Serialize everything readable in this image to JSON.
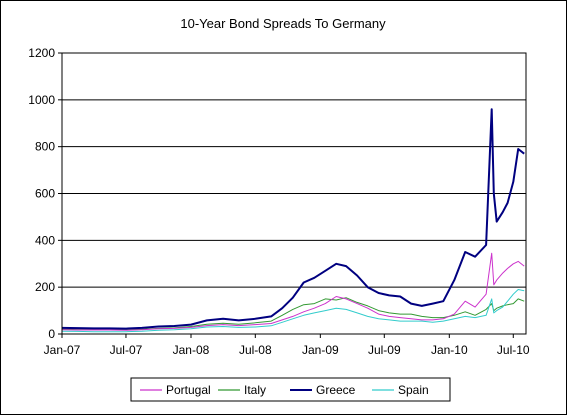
{
  "chart_data": {
    "type": "line",
    "title": "10-Year Bond Spreads To Germany",
    "xlabel": "",
    "ylabel": "",
    "ylim": [
      0,
      1200
    ],
    "y_ticks": [
      "0",
      "200",
      "400",
      "600",
      "800",
      "1000",
      "1200"
    ],
    "x_ticks": [
      "Jan-07",
      "Jul-07",
      "Jan-08",
      "Jul-08",
      "Jan-09",
      "Jul-09",
      "Jan-10",
      "Jul-10"
    ],
    "xlim": [
      "2007-01-01",
      "2010-08-06"
    ],
    "grid": "horizontal",
    "legend_position": "bottom",
    "x": [
      "2007-01-01",
      "2007-02-15",
      "2007-04-01",
      "2007-05-15",
      "2007-07-01",
      "2007-08-15",
      "2007-10-01",
      "2007-11-15",
      "2008-01-01",
      "2008-02-15",
      "2008-04-01",
      "2008-05-15",
      "2008-07-01",
      "2008-08-15",
      "2008-09-15",
      "2008-10-15",
      "2008-11-15",
      "2008-12-15",
      "2009-01-15",
      "2009-02-15",
      "2009-03-15",
      "2009-04-15",
      "2009-05-15",
      "2009-06-15",
      "2009-07-15",
      "2009-08-15",
      "2009-09-15",
      "2009-10-15",
      "2009-11-15",
      "2009-12-15",
      "2010-01-15",
      "2010-02-15",
      "2010-03-15",
      "2010-04-15",
      "2010-05-01",
      "2010-05-07",
      "2010-05-15",
      "2010-06-01",
      "2010-06-15",
      "2010-07-01",
      "2010-07-15",
      "2010-08-01"
    ],
    "series": [
      {
        "name": "Portugal",
        "color": "#cc33cc",
        "values": [
          18,
          17,
          17,
          17,
          16,
          18,
          22,
          24,
          28,
          36,
          40,
          36,
          40,
          45,
          60,
          75,
          95,
          110,
          130,
          160,
          150,
          130,
          110,
          85,
          75,
          70,
          65,
          60,
          60,
          65,
          85,
          140,
          115,
          170,
          345,
          210,
          230,
          260,
          280,
          300,
          310,
          290
        ]
      },
      {
        "name": "Italy",
        "color": "#339933",
        "values": [
          20,
          19,
          19,
          18,
          18,
          20,
          24,
          26,
          32,
          42,
          46,
          42,
          48,
          55,
          80,
          105,
          125,
          130,
          150,
          145,
          155,
          135,
          120,
          100,
          90,
          85,
          85,
          75,
          70,
          70,
          80,
          95,
          80,
          105,
          130,
          100,
          110,
          120,
          125,
          130,
          150,
          140
        ]
      },
      {
        "name": "Greece",
        "color": "#000080",
        "values": [
          26,
          25,
          24,
          24,
          23,
          26,
          32,
          34,
          40,
          58,
          65,
          58,
          65,
          75,
          110,
          155,
          220,
          240,
          270,
          300,
          290,
          250,
          200,
          175,
          165,
          160,
          130,
          120,
          130,
          140,
          230,
          350,
          330,
          380,
          960,
          600,
          480,
          520,
          560,
          650,
          790,
          770
        ]
      },
      {
        "name": "Spain",
        "color": "#33cccc",
        "values": [
          12,
          11,
          10,
          10,
          10,
          12,
          16,
          18,
          22,
          30,
          32,
          28,
          30,
          35,
          50,
          65,
          80,
          90,
          100,
          110,
          105,
          90,
          75,
          65,
          60,
          55,
          55,
          55,
          50,
          55,
          65,
          75,
          70,
          80,
          150,
          90,
          100,
          115,
          140,
          170,
          190,
          185
        ]
      }
    ]
  }
}
